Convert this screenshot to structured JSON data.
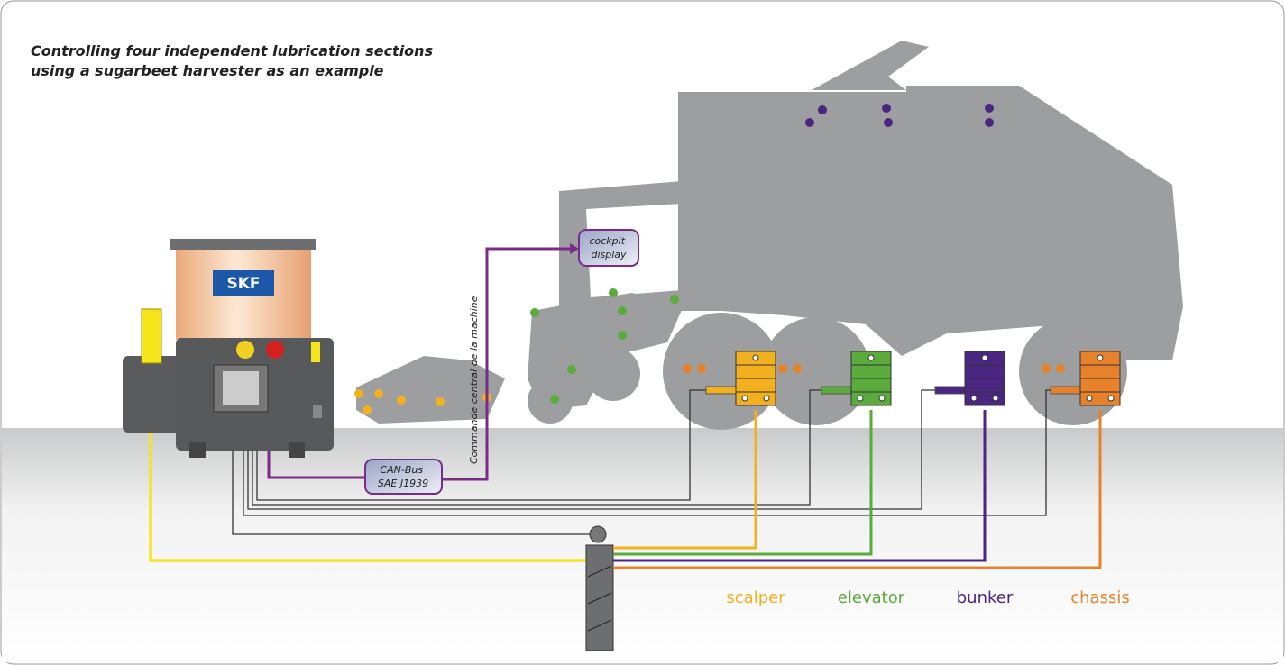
{
  "title": [
    "Controlling four independent lubrication sections",
    "using a sugarbeet harvester as an example"
  ],
  "logo": "SKF",
  "cockpit_label": [
    "cockpit",
    "display"
  ],
  "vertical_label": "Commande central de la machine",
  "canbus_label": [
    "CAN-Bus",
    "SAE J1939"
  ],
  "sections": [
    {
      "label": "scalper",
      "color": "#f2b01e"
    },
    {
      "label": "elevator",
      "color": "#5aaa3c"
    },
    {
      "label": "bunker",
      "color": "#4a2680"
    },
    {
      "label": "chassis",
      "color": "#e8822a"
    }
  ]
}
